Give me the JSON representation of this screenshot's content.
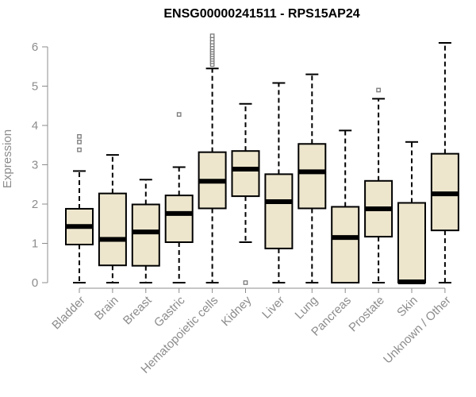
{
  "chart_data": {
    "type": "boxplot",
    "title": "ENSG00000241511 - RPS15AP24",
    "xlabel": "",
    "ylabel": "Expression",
    "ylim": [
      0,
      6.3
    ],
    "yticks": [
      0,
      1,
      2,
      3,
      4,
      5,
      6
    ],
    "box_fill": "#ede6cd",
    "outlier_color": "#7a7a7a",
    "categories": [
      "Bladder",
      "Brain",
      "Breast",
      "Gastric",
      "Hematopoietic cells",
      "Kidney",
      "Liver",
      "Lung",
      "Pancreas",
      "Prostate",
      "Skin",
      "Unknown / Other"
    ],
    "series": [
      {
        "name": "Bladder",
        "whisker_low": 0,
        "q1": 0.97,
        "median": 1.43,
        "q3": 1.88,
        "whisker_high": 2.84,
        "outliers": [
          3.38,
          3.58,
          3.72
        ]
      },
      {
        "name": "Brain",
        "whisker_low": 0,
        "q1": 0.44,
        "median": 1.1,
        "q3": 2.27,
        "whisker_high": 3.25,
        "outliers": []
      },
      {
        "name": "Breast",
        "whisker_low": 0,
        "q1": 0.43,
        "median": 1.29,
        "q3": 1.99,
        "whisker_high": 2.62,
        "outliers": []
      },
      {
        "name": "Gastric",
        "whisker_low": 0,
        "q1": 1.03,
        "median": 1.76,
        "q3": 2.22,
        "whisker_high": 2.94,
        "outliers": [
          4.28
        ]
      },
      {
        "name": "Hematopoietic cells",
        "whisker_low": 0,
        "q1": 1.89,
        "median": 2.58,
        "q3": 3.32,
        "whisker_high": 5.45,
        "outliers": [
          5.55,
          5.62,
          5.68,
          5.74,
          5.8,
          5.86,
          5.92,
          5.98,
          6.05,
          6.12,
          6.2,
          6.28
        ]
      },
      {
        "name": "Kidney",
        "whisker_low": 1.03,
        "q1": 2.2,
        "median": 2.89,
        "q3": 3.35,
        "whisker_high": 4.55,
        "outliers": [
          0
        ]
      },
      {
        "name": "Liver",
        "whisker_low": 0,
        "q1": 0.87,
        "median": 2.06,
        "q3": 2.76,
        "whisker_high": 5.08,
        "outliers": []
      },
      {
        "name": "Lung",
        "whisker_low": 0,
        "q1": 1.89,
        "median": 2.82,
        "q3": 3.53,
        "whisker_high": 5.3,
        "outliers": []
      },
      {
        "name": "Pancreas",
        "whisker_low": 0,
        "q1": 0,
        "median": 1.15,
        "q3": 1.93,
        "whisker_high": 3.87,
        "outliers": []
      },
      {
        "name": "Prostate",
        "whisker_low": 0,
        "q1": 1.17,
        "median": 1.88,
        "q3": 2.59,
        "whisker_high": 4.68,
        "outliers": [
          4.9
        ]
      },
      {
        "name": "Skin",
        "whisker_low": 0,
        "q1": 0,
        "median": 0.02,
        "q3": 2.03,
        "whisker_high": 3.58,
        "outliers": []
      },
      {
        "name": "Unknown / Other",
        "whisker_low": 0,
        "q1": 1.33,
        "median": 2.26,
        "q3": 3.28,
        "whisker_high": 6.1,
        "outliers": []
      }
    ]
  }
}
